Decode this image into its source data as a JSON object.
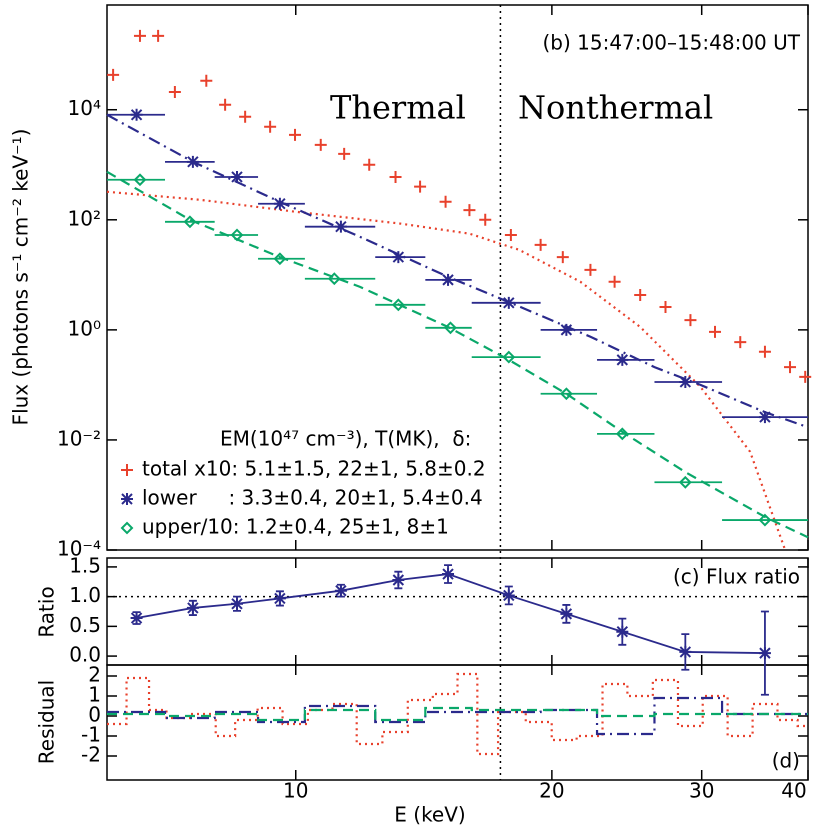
{
  "chart_data": [
    {
      "type": "scatter",
      "title": "(b) 15:47:00–15:48:00 UT",
      "annotations": [
        "Thermal",
        "Nonthermal"
      ],
      "ylabel": "Flux (photons s⁻¹ cm⁻² keV⁻¹)",
      "xlim": [
        6,
        40
      ],
      "xlog": true,
      "ylim": [
        0.0001,
        800000
      ],
      "ylog": true,
      "yticks": [
        {
          "value": 0.0001,
          "label": "10⁻⁴"
        },
        {
          "value": 0.01,
          "label": "10⁻²"
        },
        {
          "value": 1,
          "label": "10⁰"
        },
        {
          "value": 100,
          "label": "10²"
        },
        {
          "value": 10000,
          "label": "10⁴"
        }
      ],
      "vline": 17.4,
      "legend_title": "EM(10⁴⁷ cm⁻³), T(MK),  δ:",
      "bin_edges": [
        6.0,
        7.02,
        8.03,
        9.03,
        10.25,
        12.4,
        14.2,
        16.1,
        19.4,
        22.6,
        26.4,
        31.7,
        40
      ],
      "series": [
        {
          "name": "total x10: 5.1±1.5, 22±1, 5.8±0.2",
          "color": "#e8412c",
          "marker": "plus",
          "linestyle": "dotted",
          "x": [
            6.1,
            6.56,
            6.89,
            7.21,
            7.85,
            8.26,
            8.72,
            9.33,
            9.98,
            10.7,
            11.4,
            12.2,
            13.1,
            14.0,
            15.0,
            16.0,
            16.7,
            17.9,
            19.4,
            20.6,
            22.2,
            23.7,
            25.4,
            27.2,
            29.1,
            31.1,
            33.3,
            35.6,
            38.1,
            39.7
          ],
          "values": [
            43000,
            220000,
            220000,
            21000,
            33700,
            12300,
            7460,
            4900,
            3500,
            2300,
            1580,
            1000,
            600,
            400,
            213,
            150,
            100,
            53,
            35,
            21,
            12.3,
            7.5,
            4.3,
            2.6,
            1.5,
            0.92,
            0.6,
            0.4,
            0.21,
            0.14
          ],
          "model_x": [
            6,
            7.72,
            10.0,
            13.3,
            16.0,
            18.3,
            21.6,
            25.4,
            29.9,
            34.2,
            37.6
          ],
          "model_values": [
            323,
            231,
            140,
            85,
            56,
            28.5,
            7.5,
            1.13,
            0.092,
            0.0061,
            0.0001
          ]
        },
        {
          "name": "lower     : 3.3±0.4, 20±1, 5.4±0.4",
          "color": "#2b2a8c",
          "marker": "asterisk",
          "linestyle": "dashdot",
          "xerr_bins": true,
          "x": [
            6.5,
            7.57,
            8.53,
            9.58,
            11.3,
            13.2,
            15.1,
            17.8,
            20.8,
            24.2,
            28.7,
            35.6
          ],
          "values": [
            8100,
            1130,
            600,
            196,
            75,
            21,
            8.1,
            3.1,
            1.0,
            0.285,
            0.113,
            0.026
          ],
          "model_x": [
            6,
            7.57,
            9.58,
            11.9,
            15.1,
            17.8,
            22.2,
            26.4,
            29.9,
            35.6,
            40
          ],
          "model_values": [
            8100,
            1135,
            212,
            49,
            9.2,
            3.2,
            0.75,
            0.21,
            0.1,
            0.032,
            0.017
          ]
        },
        {
          "name": "upper/10: 1.2±0.4, 25±1, 8±1",
          "color": "#0aa86a",
          "marker": "diamond",
          "linestyle": "dashed",
          "xerr_bins": true,
          "x": [
            6.56,
            7.51,
            8.53,
            9.58,
            11.1,
            13.2,
            15.2,
            17.8,
            20.8,
            24.2,
            28.7,
            35.6
          ],
          "values": [
            534,
            92,
            53,
            19.6,
            8.5,
            2.85,
            1.09,
            0.32,
            0.069,
            0.0129,
            0.0017,
            0.00035
          ],
          "model_x": [
            6,
            7.51,
            9.58,
            11.9,
            15.1,
            17.8,
            20.8,
            24.2,
            28.7,
            35.6,
            40
          ],
          "model_values": [
            746,
            100,
            21,
            6.05,
            1.13,
            0.285,
            0.069,
            0.014,
            0.0026,
            0.0004,
            0.00017
          ]
        }
      ]
    },
    {
      "type": "line",
      "title": "(c) Flux ratio",
      "ylabel": "Ratio",
      "xlim": [
        6,
        40
      ],
      "xlog": true,
      "ylim": [
        -0.15,
        1.65
      ],
      "yticks": [
        {
          "value": 0,
          "label": "0.0"
        },
        0.5,
        {
          "value": 1,
          "label": "1.0"
        },
        1.5
      ],
      "refline": 1,
      "color": "#2b2a8c",
      "values": [
        0.64,
        0.81,
        0.88,
        0.97,
        1.1,
        1.28,
        1.38,
        1.02,
        0.71,
        0.41,
        0.07,
        0.05
      ],
      "errors": [
        0.1,
        0.12,
        0.12,
        0.12,
        0.1,
        0.14,
        0.15,
        0.15,
        0.15,
        0.22,
        0.3,
        0.7
      ]
    },
    {
      "type": "step",
      "title": "(d)",
      "ylabel": "Residual",
      "xlabel": "E (keV)",
      "xlim": [
        6,
        40
      ],
      "xlog": true,
      "xticks": [
        10,
        20,
        30,
        40
      ],
      "ylim": [
        -3.2,
        2.55
      ],
      "yticks": [
        -2,
        -1,
        0,
        1,
        2
      ],
      "series": [
        {
          "values": [
            -0.4,
            1.9,
            0.3,
            -0.1,
            0.1,
            -1.0,
            -0.2,
            0.4,
            -0.4,
            0.3,
            0.6,
            -1.4,
            -0.8,
            0.8,
            1.1,
            2.1,
            -1.9,
            0.2,
            -0.3,
            -1.2,
            -1.0,
            1.6,
            1.0,
            1.8,
            -0.5,
            1.0,
            -1.0,
            0.6,
            -0.2,
            -0.5
          ]
        },
        {
          "values": [
            0.2,
            -0.1,
            0.2,
            -0.3,
            0.5,
            -0.3,
            0.2,
            0.2,
            0.3,
            -0.9,
            0.9,
            0.1
          ]
        },
        {
          "values": [
            0.1,
            0.0,
            0.1,
            -0.2,
            0.3,
            -0.2,
            0.4,
            0.3,
            0.3,
            0.0,
            0.1,
            0.1
          ]
        }
      ]
    }
  ]
}
